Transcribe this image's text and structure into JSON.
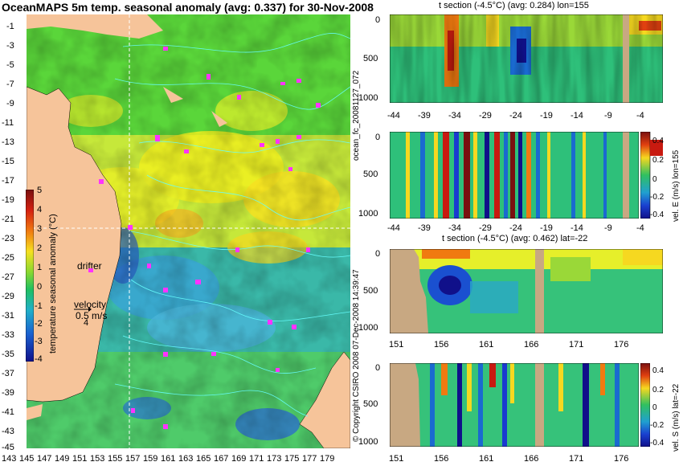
{
  "map": {
    "title": "OceanMAPS 5m temp. seasonal anomaly (avg: 0.337) for 30-Nov-2008",
    "lat_ticks": [
      "-1",
      "-3",
      "-5",
      "-7",
      "-9",
      "-11",
      "-13",
      "-15",
      "-17",
      "-19",
      "-21",
      "-23",
      "-25",
      "-27",
      "-29",
      "-31",
      "-33",
      "-35",
      "-37",
      "-39",
      "-41",
      "-43",
      "-45"
    ],
    "lon_ticks": [
      "143",
      "145",
      "147",
      "149",
      "151",
      "153",
      "155",
      "157",
      "159",
      "161",
      "163",
      "165",
      "167",
      "169",
      "171",
      "173",
      "175",
      "177",
      "179"
    ],
    "colorbar": {
      "label": "temperature seasonal anomaly (°C)",
      "ticks": [
        "5",
        "4",
        "3",
        "2",
        "1",
        "0",
        "-1",
        "-2",
        "-3",
        "-4"
      ],
      "min": -4,
      "max": 5
    },
    "drifter_label": "drifter",
    "velocity_label": "velocity",
    "velocity_value": "0.5 m/s",
    "velocity_scale": "4",
    "colors": {
      "land": "#f6c49a",
      "ocean_mid": "#2ec84a",
      "contour": "#66ffff",
      "drifter": "#ff33ff"
    }
  },
  "panels": {
    "p1": {
      "title": "t section (-4.5°C) (avg: 0.284) lon=155",
      "y_ticks": [
        "0",
        "500",
        "1000"
      ],
      "x_ticks": [
        "-44",
        "-39",
        "-34",
        "-29",
        "-24",
        "-19",
        "-14",
        "-9",
        "-4"
      ]
    },
    "p2": {
      "y_ticks": [
        "0",
        "500",
        "1000"
      ],
      "x_ticks": [
        "-44",
        "-39",
        "-34",
        "-29",
        "-24",
        "-19",
        "-14",
        "-9",
        "-4"
      ],
      "cb_label": "vel. E (m/s) lon=155",
      "cb_ticks": [
        "0.4",
        "0.2",
        "0",
        "-0.2",
        "-0.4"
      ]
    },
    "p3": {
      "title": "t section (-4.5°C) (avg: 0.462) lat=-22",
      "y_ticks": [
        "0",
        "500",
        "1000"
      ],
      "x_ticks": [
        "151",
        "156",
        "161",
        "166",
        "171",
        "176"
      ]
    },
    "p4": {
      "y_ticks": [
        "0",
        "500",
        "1000"
      ],
      "x_ticks": [
        "151",
        "156",
        "161",
        "166",
        "171",
        "176"
      ],
      "cb_label": "vel. S (m/s) lat=-22",
      "cb_ticks": [
        "0.4",
        "0.2",
        "0",
        "-0.2",
        "-0.4"
      ]
    }
  },
  "side_labels": {
    "forecast": "ocean_fc_20081127_072",
    "copyright": "© Copyright CSIRO 2008   07-Dec-2008 14:39:47"
  }
}
